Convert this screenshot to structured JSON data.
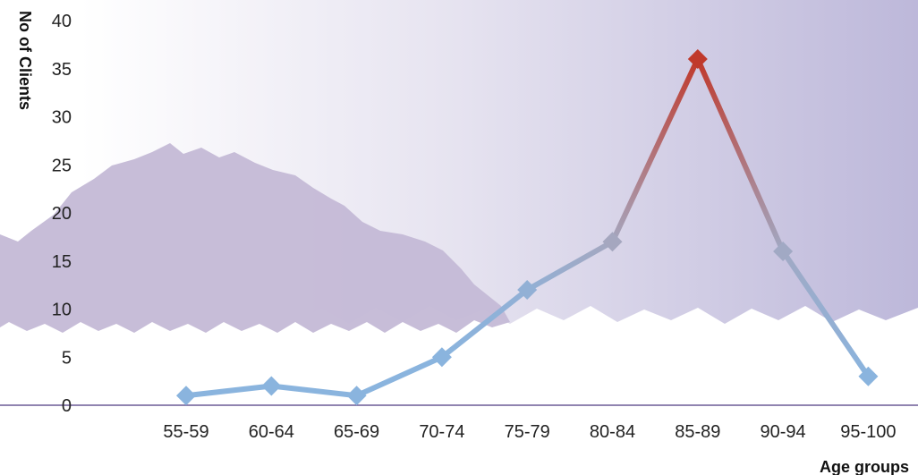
{
  "chart_data": {
    "type": "line",
    "title": "",
    "xlabel": "Age groups",
    "ylabel": "No of Clients",
    "categories": [
      "55-59",
      "60-64",
      "65-69",
      "70-74",
      "75-79",
      "80-84",
      "85-89",
      "90-94",
      "95-100"
    ],
    "series": [
      {
        "values": [
          1,
          2,
          1,
          5,
          12,
          17,
          36,
          16,
          3
        ]
      }
    ],
    "ylim": [
      0,
      40
    ],
    "yticks": [
      0,
      5,
      10,
      15,
      20,
      25,
      30,
      35,
      40
    ],
    "grid": false,
    "legend": "none",
    "colors": {
      "low": "#8ab4de",
      "mid": "#a8a6bc",
      "high": "#c0392b",
      "axis": "#6b5b95",
      "background_left": "#ffffff",
      "background_right": "#bdb8da",
      "silhouette": "#c4b9d6"
    }
  }
}
